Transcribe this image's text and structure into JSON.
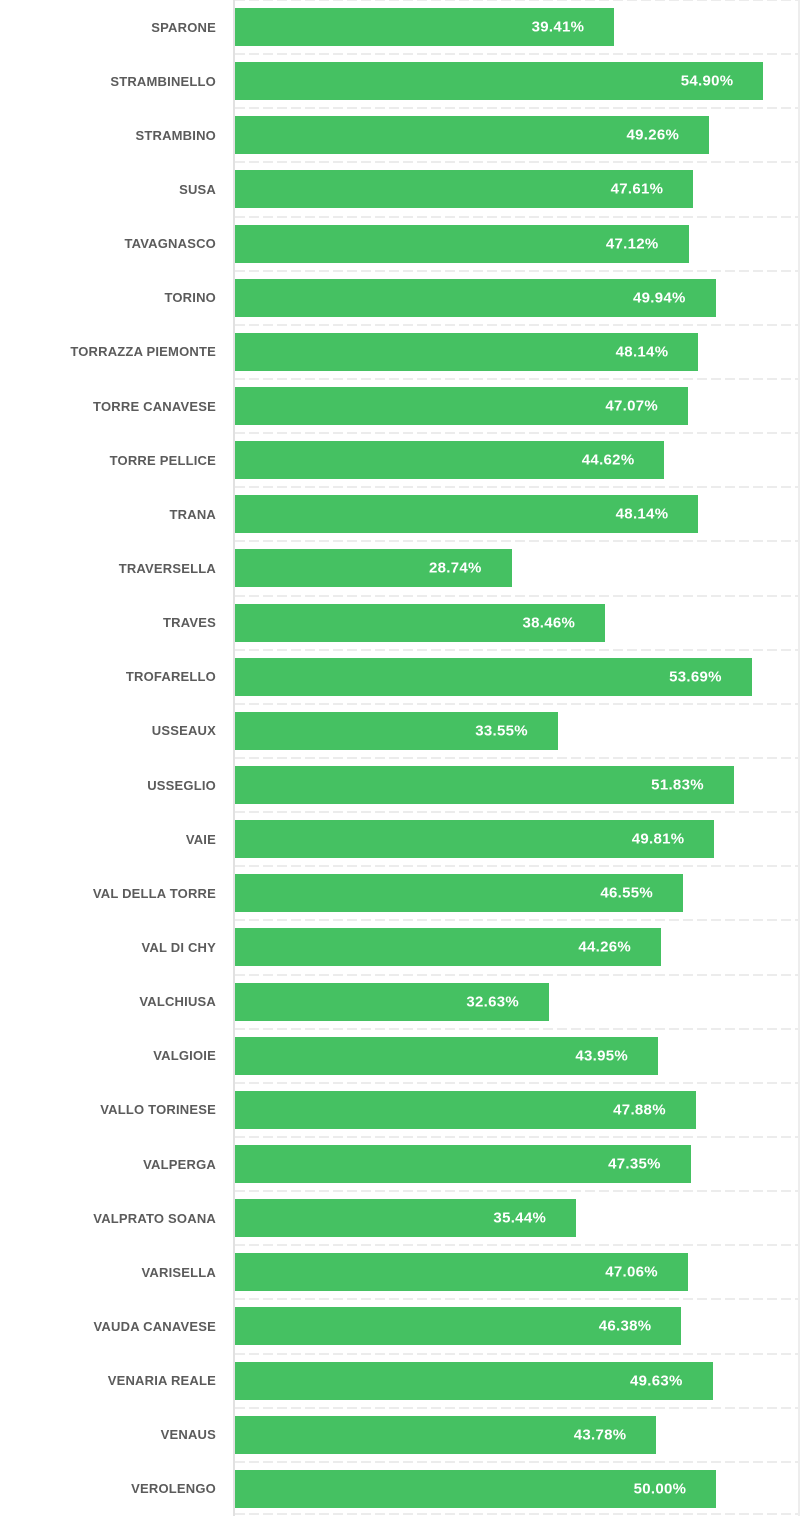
{
  "chart_data": {
    "type": "bar",
    "orientation": "horizontal",
    "categories": [
      "SPARONE",
      "STRAMBINELLO",
      "STRAMBINO",
      "SUSA",
      "TAVAGNASCO",
      "TORINO",
      "TORRAZZA PIEMONTE",
      "TORRE CANAVESE",
      "TORRE PELLICE",
      "TRANA",
      "TRAVERSELLA",
      "TRAVES",
      "TROFARELLO",
      "USSEAUX",
      "USSEGLIO",
      "VAIE",
      "VAL DELLA TORRE",
      "VAL DI CHY",
      "VALCHIUSA",
      "VALGIOIE",
      "VALLO TORINESE",
      "VALPERGA",
      "VALPRATO SOANA",
      "VARISELLA",
      "VAUDA CANAVESE",
      "VENARIA REALE",
      "VENAUS",
      "VEROLENGO"
    ],
    "values": [
      39.41,
      54.9,
      49.26,
      47.61,
      47.12,
      49.94,
      48.14,
      47.07,
      44.62,
      48.14,
      28.74,
      38.46,
      53.69,
      33.55,
      51.83,
      49.81,
      46.55,
      44.26,
      32.63,
      43.95,
      47.88,
      47.35,
      35.44,
      47.06,
      46.38,
      49.63,
      43.78,
      50.0
    ],
    "value_labels": [
      "39.41%",
      "54.90%",
      "49.26%",
      "47.61%",
      "47.12%",
      "49.94%",
      "48.14%",
      "47.07%",
      "44.62%",
      "48.14%",
      "28.74%",
      "38.46%",
      "53.69%",
      "33.55%",
      "51.83%",
      "49.81%",
      "46.55%",
      "44.26%",
      "32.63%",
      "43.95%",
      "47.88%",
      "47.35%",
      "35.44%",
      "47.06%",
      "46.38%",
      "49.63%",
      "43.78%",
      "50.00%"
    ],
    "value_suffix": "%",
    "xlim": [
      0,
      58.7
    ],
    "grid": true,
    "legend_position": "none",
    "bar_color": "#45c162",
    "value_label_color": "#ffffff",
    "category_label_color": "#5b5b5b",
    "gridline_color": "#ececec",
    "axis_line_color": "#e1e1e1"
  }
}
